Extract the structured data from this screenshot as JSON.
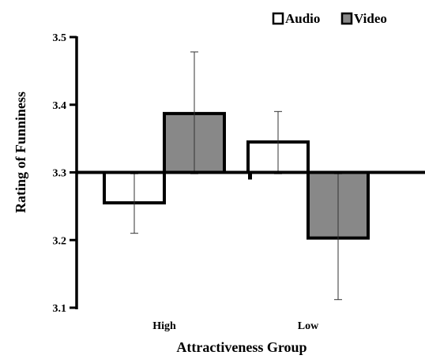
{
  "chart_data": {
    "type": "bar",
    "title": "",
    "xlabel": "Attractiveness Group",
    "ylabel": "Rating of Funniness",
    "categories": [
      "High",
      "Low"
    ],
    "baseline": 3.3,
    "ylim": [
      3.1,
      3.5
    ],
    "yticks": [
      "3.1",
      "3.2",
      "3.3",
      "3.4",
      "3.5"
    ],
    "grid": false,
    "legend_position": "top-right",
    "series": [
      {
        "name": "Audio",
        "color": "#ffffff",
        "values": [
          3.255,
          3.345
        ],
        "error_low": [
          3.21,
          3.298
        ],
        "error_high": [
          3.298,
          3.39
        ]
      },
      {
        "name": "Video",
        "color": "#888888",
        "values": [
          3.387,
          3.203
        ],
        "error_low": [
          3.298,
          3.112
        ],
        "error_high": [
          3.478,
          3.298
        ]
      }
    ]
  }
}
